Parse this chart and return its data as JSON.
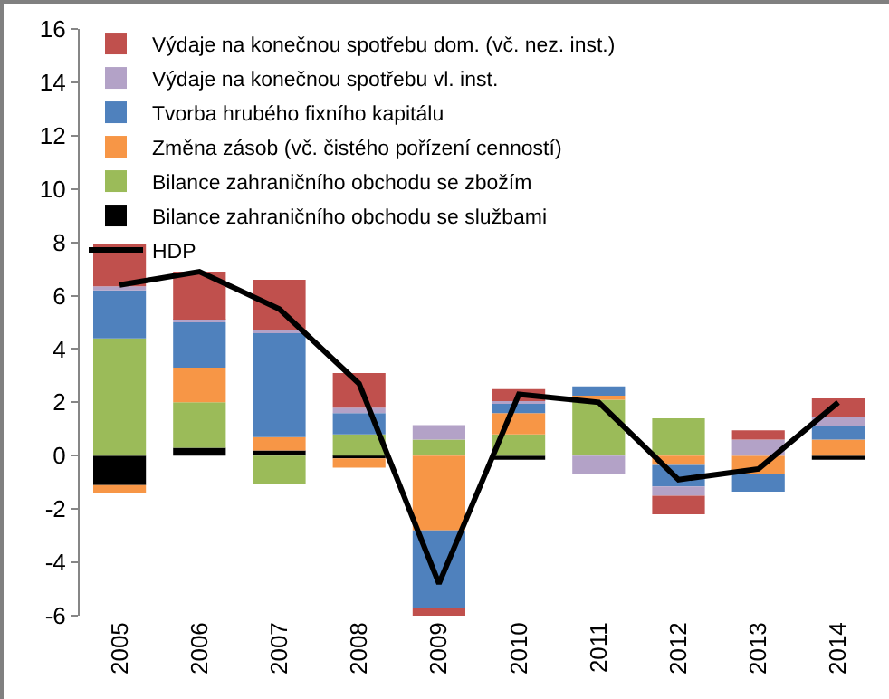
{
  "chart_data": {
    "type": "bar",
    "stacked": true,
    "categories": [
      "2005",
      "2006",
      "2007",
      "2008",
      "2009",
      "2010",
      "2011",
      "2012",
      "2013",
      "2014"
    ],
    "series": [
      {
        "name": "Bilance zahraničního obchodu se službami",
        "color": "#000000",
        "values": [
          -1.1,
          0.3,
          0.2,
          -0.1,
          null,
          -0.15,
          0,
          0,
          0,
          -0.15
        ]
      },
      {
        "name": "Bilance zahraničního obchodu se zbožím",
        "color": "#9bbb59",
        "values": [
          4.4,
          1.7,
          -1.05,
          0.8,
          0.6,
          0.8,
          2.1,
          1.4,
          0,
          0
        ]
      },
      {
        "name": "Změna zásob (vč. čistého pořízení cenností)",
        "color": "#f79646",
        "values": [
          -0.3,
          1.3,
          0.5,
          -0.35,
          -2.8,
          0.8,
          0.15,
          -0.35,
          -0.7,
          0.6
        ]
      },
      {
        "name": "Tvorba hrubého fixního kapitálu",
        "color": "#4f81bd",
        "values": [
          1.8,
          1.7,
          3.9,
          0.8,
          -2.9,
          0.35,
          0.35,
          -0.8,
          -0.65,
          0.5
        ]
      },
      {
        "name": "Výdaje na konečnou spotřebu vl. inst.",
        "color": "#b3a2c7",
        "values": [
          0.15,
          0.1,
          0.1,
          0.2,
          0.55,
          0.1,
          -0.7,
          -0.35,
          0.6,
          0.35
        ]
      },
      {
        "name": "Výdaje na konečnou spotřebu dom. (vč. nez. inst.)",
        "color": "#c0504d",
        "values": [
          1.6,
          1.8,
          1.9,
          1.3,
          -0.3,
          0.45,
          0,
          -0.7,
          0.35,
          0.7
        ]
      },
      {
        "name": "HDP",
        "type": "line",
        "color": "#000000",
        "values": [
          6.4,
          6.9,
          5.5,
          2.7,
          -4.8,
          2.3,
          2.0,
          -0.9,
          -0.5,
          2.0
        ]
      }
    ],
    "ylim": [
      -6,
      16
    ],
    "yticks": [
      -6,
      -4,
      -2,
      0,
      2,
      4,
      6,
      8,
      10,
      12,
      14,
      16
    ],
    "grid": false,
    "legend": "top left"
  }
}
